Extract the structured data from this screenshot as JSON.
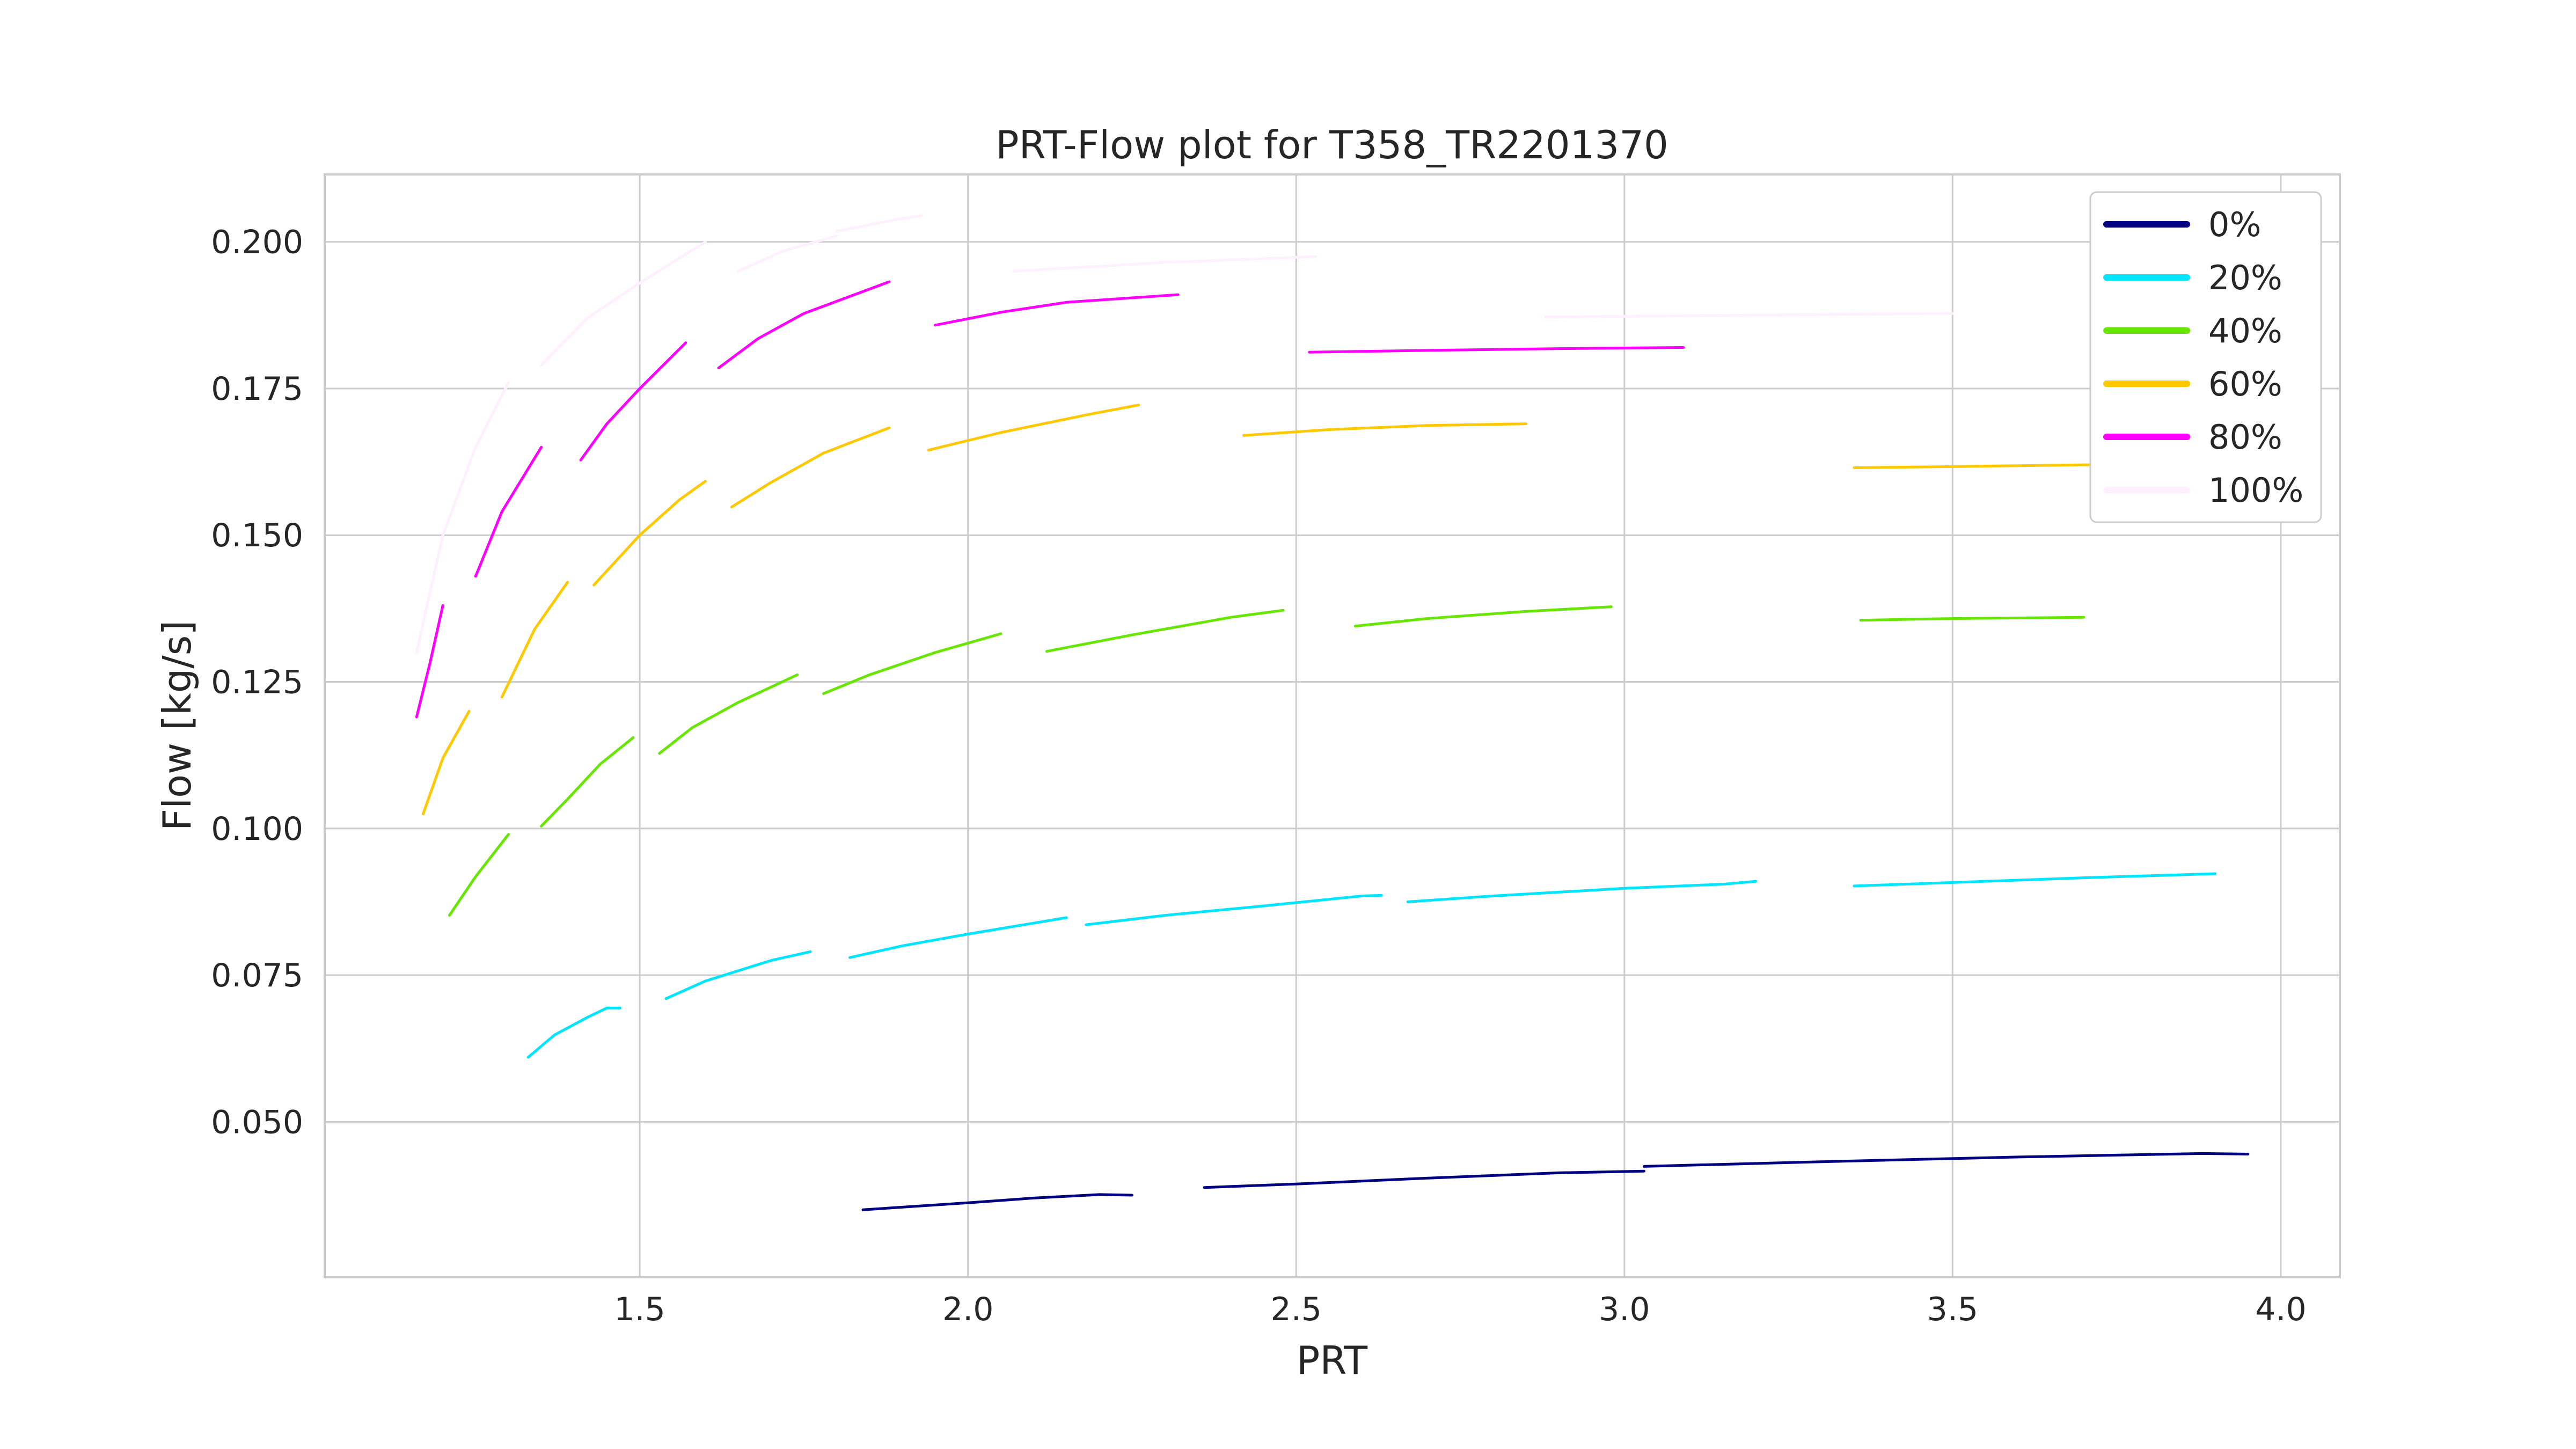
{
  "chart_data": {
    "type": "line",
    "title": "PRT-Flow plot for T358_TR2201370",
    "xlabel": "PRT",
    "ylabel": "Flow [kg/s]",
    "xlim": [
      1.02,
      4.09
    ],
    "ylim": [
      0.0235,
      0.2115
    ],
    "xticks": [
      1.5,
      2.0,
      2.5,
      3.0,
      3.5,
      4.0
    ],
    "xtick_labels": [
      "1.5",
      "2.0",
      "2.5",
      "3.0",
      "3.5",
      "4.0"
    ],
    "yticks": [
      0.05,
      0.075,
      0.1,
      0.125,
      0.15,
      0.175,
      0.2
    ],
    "ytick_labels": [
      "0.050",
      "0.075",
      "0.100",
      "0.125",
      "0.150",
      "0.175",
      "0.200"
    ],
    "grid": true,
    "legend_position": "top-right",
    "series": [
      {
        "name": "0%",
        "color": "#000080",
        "segments": [
          [
            [
              1.84,
              0.035
            ],
            [
              2.0,
              0.0362
            ],
            [
              2.1,
              0.037
            ],
            [
              2.2,
              0.0376
            ],
            [
              2.25,
              0.0375
            ]
          ],
          [
            [
              2.36,
              0.0388
            ],
            [
              2.5,
              0.0394
            ],
            [
              2.7,
              0.0404
            ],
            [
              2.9,
              0.0413
            ],
            [
              3.03,
              0.0416
            ]
          ],
          [
            [
              3.03,
              0.0424
            ],
            [
              3.3,
              0.0432
            ],
            [
              3.6,
              0.044
            ],
            [
              3.88,
              0.0446
            ],
            [
              3.95,
              0.0445
            ]
          ]
        ]
      },
      {
        "name": "20%",
        "color": "#00e5ff",
        "segments": [
          [
            [
              1.33,
              0.061
            ],
            [
              1.37,
              0.0648
            ],
            [
              1.42,
              0.0678
            ],
            [
              1.45,
              0.0694
            ],
            [
              1.47,
              0.0694
            ]
          ],
          [
            [
              1.54,
              0.071
            ],
            [
              1.6,
              0.074
            ],
            [
              1.7,
              0.0775
            ],
            [
              1.76,
              0.079
            ]
          ],
          [
            [
              1.82,
              0.078
            ],
            [
              1.9,
              0.08
            ],
            [
              2.0,
              0.082
            ],
            [
              2.15,
              0.0848
            ]
          ],
          [
            [
              2.18,
              0.0836
            ],
            [
              2.3,
              0.0852
            ],
            [
              2.45,
              0.0868
            ],
            [
              2.6,
              0.0885
            ],
            [
              2.63,
              0.0886
            ]
          ],
          [
            [
              2.67,
              0.0875
            ],
            [
              2.8,
              0.0885
            ],
            [
              3.0,
              0.0898
            ],
            [
              3.15,
              0.0905
            ],
            [
              3.2,
              0.091
            ]
          ],
          [
            [
              3.35,
              0.0902
            ],
            [
              3.5,
              0.0908
            ],
            [
              3.7,
              0.0916
            ],
            [
              3.9,
              0.0923
            ]
          ]
        ]
      },
      {
        "name": "40%",
        "color": "#66e600",
        "segments": [
          [
            [
              1.21,
              0.0852
            ],
            [
              1.25,
              0.0918
            ],
            [
              1.3,
              0.099
            ]
          ],
          [
            [
              1.35,
              0.1004
            ],
            [
              1.39,
              0.105
            ],
            [
              1.44,
              0.111
            ],
            [
              1.49,
              0.1155
            ]
          ],
          [
            [
              1.53,
              0.1128
            ],
            [
              1.58,
              0.1172
            ],
            [
              1.65,
              0.1215
            ],
            [
              1.74,
              0.1262
            ]
          ],
          [
            [
              1.78,
              0.123
            ],
            [
              1.85,
              0.1262
            ],
            [
              1.95,
              0.13
            ],
            [
              2.05,
              0.1332
            ]
          ],
          [
            [
              2.12,
              0.1302
            ],
            [
              2.25,
              0.133
            ],
            [
              2.4,
              0.136
            ],
            [
              2.48,
              0.1372
            ]
          ],
          [
            [
              2.59,
              0.1345
            ],
            [
              2.7,
              0.1358
            ],
            [
              2.85,
              0.137
            ],
            [
              2.98,
              0.1378
            ]
          ],
          [
            [
              3.36,
              0.1355
            ],
            [
              3.5,
              0.1358
            ],
            [
              3.7,
              0.136
            ]
          ]
        ]
      },
      {
        "name": "60%",
        "color": "#ffc800",
        "segments": [
          [
            [
              1.17,
              0.1025
            ],
            [
              1.2,
              0.112
            ],
            [
              1.24,
              0.12
            ]
          ],
          [
            [
              1.29,
              0.1224
            ],
            [
              1.34,
              0.134
            ],
            [
              1.39,
              0.142
            ]
          ],
          [
            [
              1.43,
              0.1415
            ],
            [
              1.5,
              0.15
            ],
            [
              1.56,
              0.156
            ],
            [
              1.6,
              0.1592
            ]
          ],
          [
            [
              1.64,
              0.1548
            ],
            [
              1.7,
              0.159
            ],
            [
              1.78,
              0.164
            ],
            [
              1.88,
              0.1683
            ]
          ],
          [
            [
              1.94,
              0.1645
            ],
            [
              2.05,
              0.1675
            ],
            [
              2.18,
              0.1705
            ],
            [
              2.26,
              0.1722
            ]
          ],
          [
            [
              2.42,
              0.167
            ],
            [
              2.55,
              0.168
            ],
            [
              2.7,
              0.1687
            ],
            [
              2.85,
              0.169
            ]
          ],
          [
            [
              3.35,
              0.1615
            ],
            [
              3.5,
              0.1617
            ],
            [
              3.7,
              0.162
            ],
            [
              3.75,
              0.162
            ]
          ]
        ]
      },
      {
        "name": "80%",
        "color": "#ff00ff",
        "segments": [
          [
            [
              1.16,
              0.119
            ],
            [
              1.18,
              0.128
            ],
            [
              1.2,
              0.138
            ]
          ],
          [
            [
              1.25,
              0.143
            ],
            [
              1.29,
              0.154
            ],
            [
              1.35,
              0.165
            ]
          ],
          [
            [
              1.41,
              0.1628
            ],
            [
              1.45,
              0.169
            ],
            [
              1.5,
              0.175
            ],
            [
              1.57,
              0.1828
            ]
          ],
          [
            [
              1.62,
              0.1785
            ],
            [
              1.68,
              0.1835
            ],
            [
              1.75,
              0.1878
            ],
            [
              1.88,
              0.1932
            ]
          ],
          [
            [
              1.95,
              0.1858
            ],
            [
              2.05,
              0.188
            ],
            [
              2.15,
              0.1897
            ],
            [
              2.32,
              0.191
            ]
          ],
          [
            [
              2.52,
              0.1812
            ],
            [
              2.7,
              0.1815
            ],
            [
              2.9,
              0.1818
            ],
            [
              3.09,
              0.182
            ]
          ]
        ]
      },
      {
        "name": "100%",
        "color": "#fff0ff",
        "segments": [
          [
            [
              1.16,
              0.13
            ],
            [
              1.2,
              0.15
            ],
            [
              1.25,
              0.165
            ],
            [
              1.3,
              0.176
            ]
          ],
          [
            [
              1.35,
              0.179
            ],
            [
              1.42,
              0.187
            ],
            [
              1.5,
              0.193
            ],
            [
              1.6,
              0.2
            ]
          ],
          [
            [
              1.65,
              0.195
            ],
            [
              1.72,
              0.1985
            ],
            [
              1.8,
              0.201
            ]
          ],
          [
            [
              1.8,
              0.2018
            ],
            [
              1.9,
              0.204
            ],
            [
              1.93,
              0.2045
            ]
          ],
          [
            [
              2.07,
              0.195
            ],
            [
              2.3,
              0.1965
            ],
            [
              2.53,
              0.1975
            ]
          ],
          [
            [
              2.88,
              0.1872
            ],
            [
              3.2,
              0.1875
            ],
            [
              3.5,
              0.1878
            ]
          ]
        ]
      }
    ]
  }
}
